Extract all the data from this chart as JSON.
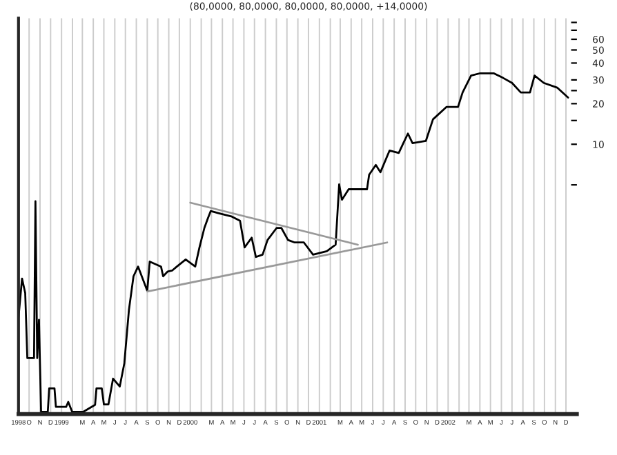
{
  "chart_data": {
    "type": "line",
    "title": "(80,0000, 80,0000, 80,0000, 80,0000, +14,0000)",
    "log": "y",
    "grid": "x",
    "ylim": [
      0.1,
      86
    ],
    "yticks": [
      {
        "value": 5,
        "label": null
      },
      10,
      {
        "value": 15,
        "label": null
      },
      20,
      {
        "value": 25,
        "label": null
      },
      30,
      40,
      50,
      60,
      {
        "value": 70,
        "label": null
      },
      {
        "value": 80,
        "label": null
      }
    ],
    "xlim": [
      "1998-09-01",
      "2003-01-01"
    ],
    "xticks": [
      {
        "value": "1998-09-01",
        "label": "1998"
      },
      {
        "value": "1998-10-01",
        "label": "O"
      },
      {
        "value": "1998-11-01",
        "label": "N"
      },
      {
        "value": "1998-12-01",
        "label": "D"
      },
      {
        "value": "1999-01-01",
        "label": "1999"
      },
      {
        "value": "1999-02-01",
        "label": null
      },
      {
        "value": "1999-03-01",
        "label": "M"
      },
      {
        "value": "1999-04-01",
        "label": "A"
      },
      {
        "value": "1999-05-01",
        "label": "M"
      },
      {
        "value": "1999-06-01",
        "label": "J"
      },
      {
        "value": "1999-07-01",
        "label": "J"
      },
      {
        "value": "1999-08-01",
        "label": "A"
      },
      {
        "value": "1999-09-01",
        "label": "S"
      },
      {
        "value": "1999-10-01",
        "label": "O"
      },
      {
        "value": "1999-11-01",
        "label": "N"
      },
      {
        "value": "1999-12-01",
        "label": "D"
      },
      {
        "value": "2000-01-01",
        "label": "2000"
      },
      {
        "value": "2000-02-01",
        "label": null
      },
      {
        "value": "2000-03-01",
        "label": "M"
      },
      {
        "value": "2000-04-01",
        "label": "A"
      },
      {
        "value": "2000-05-01",
        "label": "M"
      },
      {
        "value": "2000-06-01",
        "label": "J"
      },
      {
        "value": "2000-07-01",
        "label": "J"
      },
      {
        "value": "2000-08-01",
        "label": "A"
      },
      {
        "value": "2000-09-01",
        "label": "S"
      },
      {
        "value": "2000-10-01",
        "label": "O"
      },
      {
        "value": "2000-11-01",
        "label": "N"
      },
      {
        "value": "2000-12-01",
        "label": "D"
      },
      {
        "value": "2001-01-01",
        "label": "2001"
      },
      {
        "value": "2001-02-01",
        "label": null
      },
      {
        "value": "2001-03-01",
        "label": "M"
      },
      {
        "value": "2001-04-01",
        "label": "A"
      },
      {
        "value": "2001-05-01",
        "label": "M"
      },
      {
        "value": "2001-06-01",
        "label": "J"
      },
      {
        "value": "2001-07-01",
        "label": "J"
      },
      {
        "value": "2001-08-01",
        "label": "A"
      },
      {
        "value": "2001-09-01",
        "label": "S"
      },
      {
        "value": "2001-10-01",
        "label": "O"
      },
      {
        "value": "2001-11-01",
        "label": "N"
      },
      {
        "value": "2001-12-01",
        "label": "D"
      },
      {
        "value": "2002-01-01",
        "label": "2002"
      },
      {
        "value": "2002-02-01",
        "label": null
      },
      {
        "value": "2002-03-01",
        "label": "M"
      },
      {
        "value": "2002-04-01",
        "label": "A"
      },
      {
        "value": "2002-05-01",
        "label": "M"
      },
      {
        "value": "2002-06-01",
        "label": "J"
      },
      {
        "value": "2002-07-01",
        "label": "J"
      },
      {
        "value": "2002-08-01",
        "label": "A"
      },
      {
        "value": "2002-09-01",
        "label": "S"
      },
      {
        "value": "2002-10-01",
        "label": "O"
      },
      {
        "value": "2002-11-01",
        "label": "N"
      },
      {
        "value": "2002-12-01",
        "label": "D"
      }
    ],
    "series": [
      {
        "color": "#000000",
        "x": [
          "1998-09-01",
          "1998-09-11",
          "1998-09-20",
          "1998-09-26",
          "1998-10-15",
          "1998-10-19",
          "1998-10-24",
          "1998-10-29",
          "1998-11-04",
          "1998-11-23",
          "1998-11-27",
          "1998-12-12",
          "1998-12-16",
          "1999-01-14",
          "1999-01-20",
          "1999-01-31",
          "1999-03-04",
          "1999-04-06",
          "1999-04-10",
          "1999-04-25",
          "1999-05-01",
          "1999-05-14",
          "1999-05-27",
          "1999-06-15",
          "1999-06-28",
          "1999-07-11",
          "1999-07-24",
          "1999-08-06",
          "1999-09-01",
          "1999-09-08",
          "1999-10-10",
          "1999-10-16",
          "1999-10-29",
          "1999-11-11",
          "1999-11-24",
          "1999-12-19",
          "2000-01-15",
          "2000-01-27",
          "2000-02-10",
          "2000-02-20",
          "2000-02-28",
          "2000-03-24",
          "2000-04-26",
          "2000-05-21",
          "2000-06-03",
          "2000-06-23",
          "2000-07-05",
          "2000-07-24",
          "2000-08-07",
          "2000-09-02",
          "2000-09-15",
          "2000-10-04",
          "2000-10-23",
          "2000-11-18",
          "2000-12-14",
          "2001-01-22",
          "2001-02-16",
          "2001-02-26",
          "2001-03-06",
          "2001-03-25",
          "2001-04-20",
          "2001-05-16",
          "2001-05-22",
          "2001-06-10",
          "2001-06-23",
          "2001-07-19",
          "2001-08-14",
          "2001-08-27",
          "2001-09-09",
          "2001-09-22",
          "2001-10-30",
          "2001-11-19",
          "2001-12-27",
          "2002-01-29",
          "2002-02-11",
          "2002-03-07",
          "2002-04-02",
          "2002-05-10",
          "2002-06-06",
          "2002-07-01",
          "2002-07-26",
          "2002-08-21",
          "2002-09-03",
          "2002-09-29",
          "2002-11-06",
          "2002-12-07"
        ],
        "values": [
          0.52,
          1.01,
          0.79,
          0.26,
          0.26,
          3.78,
          0.26,
          0.5,
          0.104,
          0.104,
          0.155,
          0.155,
          0.113,
          0.113,
          0.123,
          0.104,
          0.104,
          0.117,
          0.155,
          0.155,
          0.118,
          0.118,
          0.183,
          0.16,
          0.238,
          0.59,
          1.05,
          1.24,
          0.82,
          1.35,
          1.24,
          1.05,
          1.14,
          1.16,
          1.24,
          1.4,
          1.24,
          1.72,
          2.4,
          2.83,
          3.2,
          3.07,
          2.92,
          2.71,
          1.72,
          2.03,
          1.46,
          1.52,
          1.95,
          2.4,
          2.4,
          1.95,
          1.87,
          1.87,
          1.52,
          1.61,
          1.8,
          5.04,
          3.88,
          4.64,
          4.64,
          4.64,
          5.94,
          7.02,
          6.2,
          8.99,
          8.62,
          10.2,
          12.0,
          10.2,
          10.6,
          15.3,
          18.9,
          18.9,
          24.2,
          32.3,
          33.6,
          33.6,
          31.0,
          28.5,
          24.2,
          24.2,
          32.3,
          28.5,
          26.3,
          22.2
        ]
      },
      {
        "color": "#999999",
        "x": [
          "2000-01-01",
          "2001-04-20"
        ],
        "values": [
          3.69,
          1.8
        ]
      },
      {
        "color": "#999999",
        "x": [
          "1999-09-01",
          "2001-07-12"
        ],
        "values": [
          0.81,
          1.87
        ]
      }
    ]
  }
}
